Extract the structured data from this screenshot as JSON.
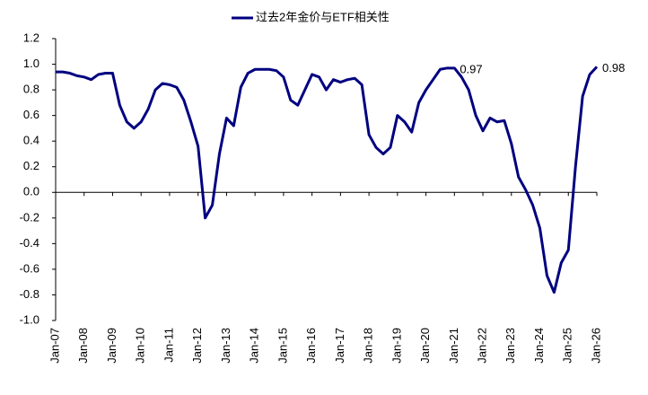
{
  "chart_data": {
    "type": "line",
    "categories": [
      "Jan-07",
      null,
      null,
      null,
      "Jan-08",
      null,
      null,
      null,
      "Jan-09",
      null,
      null,
      null,
      "Jan-10",
      null,
      null,
      null,
      "Jan-11",
      null,
      null,
      null,
      "Jan-12",
      null,
      null,
      null,
      "Jan-13",
      null,
      null,
      null,
      "Jan-14",
      null,
      null,
      null,
      "Jan-15",
      null,
      null,
      null,
      "Jan-16",
      null,
      null,
      null,
      "Jan-17",
      null,
      null,
      null,
      "Jan-18",
      null,
      null,
      null,
      "Jan-19",
      null,
      null,
      null,
      "Jan-20",
      null,
      null,
      null,
      "Jan-21",
      null,
      null,
      null,
      "Jan-22",
      null,
      null,
      null,
      "Jan-23",
      null,
      null,
      null,
      "Jan-24",
      null,
      null,
      null,
      "Jan-25",
      null,
      null,
      null,
      "Jan-26"
    ],
    "series": [
      {
        "name": "过去2年金价与ETF相关性",
        "color": "#000080",
        "values": [
          0.94,
          0.94,
          0.93,
          0.91,
          0.9,
          0.88,
          0.92,
          0.93,
          0.93,
          0.68,
          0.55,
          0.5,
          0.55,
          0.65,
          0.8,
          0.85,
          0.84,
          0.82,
          0.72,
          0.55,
          0.36,
          -0.2,
          -0.1,
          0.3,
          0.58,
          0.52,
          0.82,
          0.93,
          0.96,
          0.96,
          0.96,
          0.95,
          0.9,
          0.72,
          0.68,
          0.8,
          0.92,
          0.9,
          0.8,
          0.88,
          0.86,
          0.88,
          0.89,
          0.84,
          0.45,
          0.35,
          0.3,
          0.35,
          0.6,
          0.55,
          0.47,
          0.7,
          0.8,
          0.88,
          0.96,
          0.97,
          0.97,
          0.9,
          0.8,
          0.6,
          0.48,
          0.58,
          0.55,
          0.56,
          0.38,
          0.12,
          0.02,
          -0.1,
          -0.28,
          -0.65,
          -0.78,
          -0.55,
          -0.45,
          0.2,
          0.75,
          0.92,
          0.98
        ],
        "value_labels": [
          null,
          null,
          null,
          null,
          null,
          null,
          null,
          null,
          null,
          null,
          null,
          null,
          null,
          null,
          null,
          null,
          null,
          null,
          null,
          null,
          null,
          null,
          null,
          null,
          null,
          null,
          null,
          null,
          null,
          null,
          null,
          null,
          null,
          null,
          null,
          null,
          null,
          null,
          null,
          null,
          null,
          null,
          null,
          null,
          null,
          null,
          null,
          null,
          null,
          null,
          null,
          null,
          null,
          null,
          null,
          null,
          "0.97",
          null,
          null,
          null,
          null,
          null,
          null,
          null,
          null,
          null,
          null,
          null,
          null,
          null,
          null,
          null,
          null,
          null,
          null,
          null,
          "0.98"
        ]
      }
    ],
    "ylim": [
      -1.0,
      1.2
    ],
    "yticks": [
      {
        "value": -1.0,
        "label": "-1.0"
      },
      {
        "value": -0.8,
        "label": "-0.8"
      },
      {
        "value": -0.6,
        "label": "-0.6"
      },
      {
        "value": -0.4,
        "label": "-0.4"
      },
      {
        "value": -0.2,
        "label": "-0.2"
      },
      {
        "value": 0.0,
        "label": "0.0"
      },
      {
        "value": 0.2,
        "label": "0.2"
      },
      {
        "value": 0.4,
        "label": "0.4"
      },
      {
        "value": 0.6,
        "label": "0.6"
      },
      {
        "value": 0.8,
        "label": "0.8"
      },
      {
        "value": 1.0,
        "label": "1.0"
      },
      {
        "value": 1.2,
        "label": "1.2"
      }
    ],
    "negative_tick_color": "#ff0000",
    "grid": false,
    "legend": "top"
  }
}
